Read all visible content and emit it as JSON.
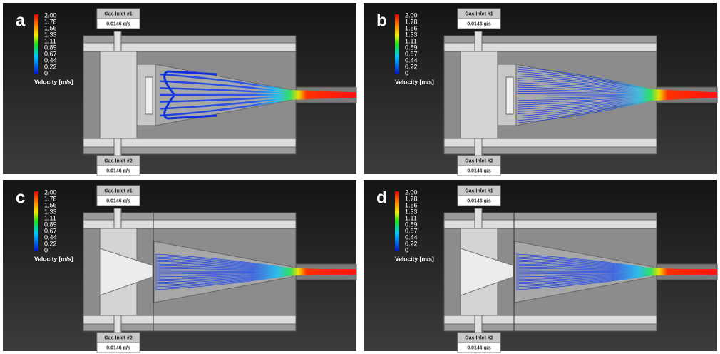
{
  "panels": [
    {
      "label": "a",
      "legend": {
        "ticks": [
          "2.00",
          "1.78",
          "1.56",
          "1.33",
          "1.11",
          "0.89",
          "0.67",
          "0.44",
          "0.22",
          "0"
        ],
        "title": "Velocity [m/s]"
      },
      "inlets": [
        {
          "name": "Gas Inlet #1",
          "rate": "0.0146 g/s"
        },
        {
          "name": "Gas Inlet #2",
          "rate": "0.0146 g/s"
        }
      ]
    },
    {
      "label": "b",
      "legend": {
        "ticks": [
          "2.00",
          "1.78",
          "1.56",
          "1.33",
          "1.11",
          "0.89",
          "0.67",
          "0.44",
          "0.22",
          "0"
        ],
        "title": "Velocity [m/s]"
      },
      "inlets": [
        {
          "name": "Gas Inlet #1",
          "rate": "0.0146 g/s"
        },
        {
          "name": "Gas Inlet #2",
          "rate": "0.0146 g/s"
        }
      ]
    },
    {
      "label": "c",
      "legend": {
        "ticks": [
          "2.00",
          "1.78",
          "1.56",
          "1.33",
          "1.11",
          "0.89",
          "0.67",
          "0.44",
          "0.22",
          "0"
        ],
        "title": "Velocity [m/s]"
      },
      "inlets": [
        {
          "name": "Gas Inlet #1",
          "rate": "0.0146 g/s"
        },
        {
          "name": "Gas Inlet #2",
          "rate": "0.0146 g/s"
        }
      ]
    },
    {
      "label": "d",
      "legend": {
        "ticks": [
          "2.00",
          "1.78",
          "1.56",
          "1.33",
          "1.11",
          "0.89",
          "0.67",
          "0.44",
          "0.22",
          "0"
        ],
        "title": "Velocity [m/s]"
      },
      "inlets": [
        {
          "name": "Gas Inlet #1",
          "rate": "0.0146 g/s"
        },
        {
          "name": "Gas Inlet #2",
          "rate": "0.0146 g/s"
        }
      ]
    }
  ]
}
